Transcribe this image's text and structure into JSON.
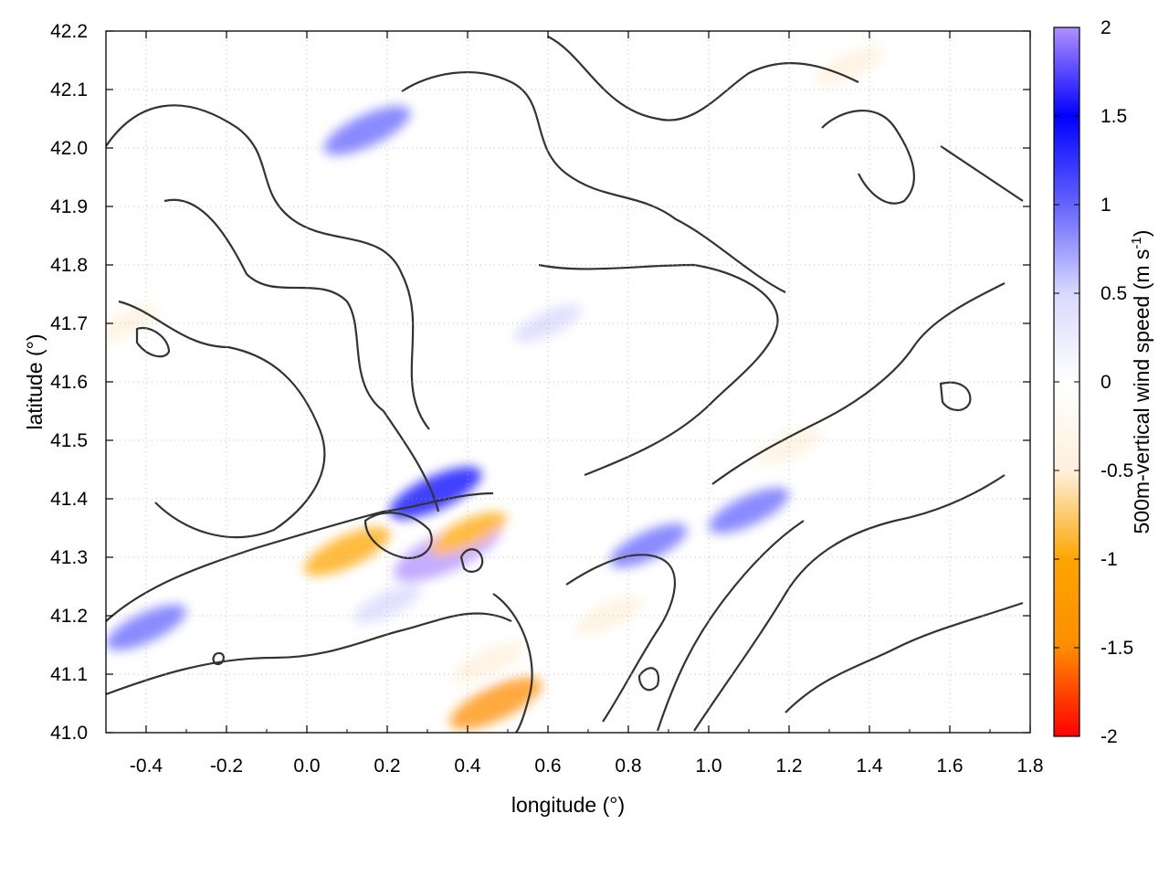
{
  "chart_data": {
    "type": "heatmap",
    "xlabel": "longitude (°)",
    "ylabel": "latitude (°)",
    "xlim": [
      -0.5,
      1.8
    ],
    "ylim": [
      41.0,
      42.2
    ],
    "x_ticks": [
      "-0.4",
      "-0.2",
      "0.0",
      "0.2",
      "0.4",
      "0.6",
      "0.8",
      "1.0",
      "1.2",
      "1.4",
      "1.6",
      "1.8"
    ],
    "x_tick_values": [
      -0.4,
      -0.2,
      0.0,
      0.2,
      0.4,
      0.6,
      0.8,
      1.0,
      1.2,
      1.4,
      1.6,
      1.8
    ],
    "y_ticks": [
      "41.0",
      "41.1",
      "41.2",
      "41.3",
      "41.4",
      "41.5",
      "41.6",
      "41.7",
      "41.8",
      "41.9",
      "42.0",
      "42.1",
      "42.2"
    ],
    "y_tick_values": [
      41.0,
      41.1,
      41.2,
      41.3,
      41.4,
      41.5,
      41.6,
      41.7,
      41.8,
      41.9,
      42.0,
      42.1,
      42.2
    ],
    "grid": true,
    "colorbar": {
      "label_main": "500m-vertical wind speed (m s",
      "label_sup": "-1",
      "label_end": ")",
      "range": [
        -2,
        2
      ],
      "ticks": [
        "2",
        "1.5",
        "1",
        "0.5",
        "0",
        "-0.5",
        "-1",
        "-1.5",
        "-2"
      ],
      "tick_values": [
        2,
        1.5,
        1,
        0.5,
        0,
        -0.5,
        -1,
        -1.5,
        -2
      ],
      "colors": [
        "#ff0000",
        "#ff8c00",
        "#ffa500",
        "#fff0dc",
        "#ffffff",
        "#d8d8ff",
        "#6464ff",
        "#0000ff",
        "#b090ff"
      ]
    },
    "features": [
      {
        "lon": 0.1,
        "lat": 41.31,
        "w": -1.2
      },
      {
        "lon": 0.35,
        "lat": 41.31,
        "w": 1.9
      },
      {
        "lon": 0.32,
        "lat": 41.41,
        "w": 1.4
      },
      {
        "lon": 0.4,
        "lat": 41.34,
        "w": -0.9
      },
      {
        "lon": 0.47,
        "lat": 41.05,
        "w": -1.4
      },
      {
        "lon": 0.45,
        "lat": 41.12,
        "w": -0.7
      },
      {
        "lon": 0.15,
        "lat": 42.03,
        "w": 1.2
      },
      {
        "lon": -0.4,
        "lat": 41.18,
        "w": 1.0
      },
      {
        "lon": 0.85,
        "lat": 41.32,
        "w": 0.9
      },
      {
        "lon": 1.1,
        "lat": 41.38,
        "w": 1.0
      },
      {
        "lon": 1.2,
        "lat": 41.49,
        "w": -0.6
      },
      {
        "lon": 0.6,
        "lat": 41.7,
        "w": 0.6
      },
      {
        "lon": -0.45,
        "lat": 41.7,
        "w": -0.5
      },
      {
        "lon": 0.75,
        "lat": 41.2,
        "w": -0.6
      },
      {
        "lon": 1.35,
        "lat": 42.14,
        "w": -0.6
      },
      {
        "lon": 0.2,
        "lat": 41.22,
        "w": 0.6
      }
    ]
  }
}
